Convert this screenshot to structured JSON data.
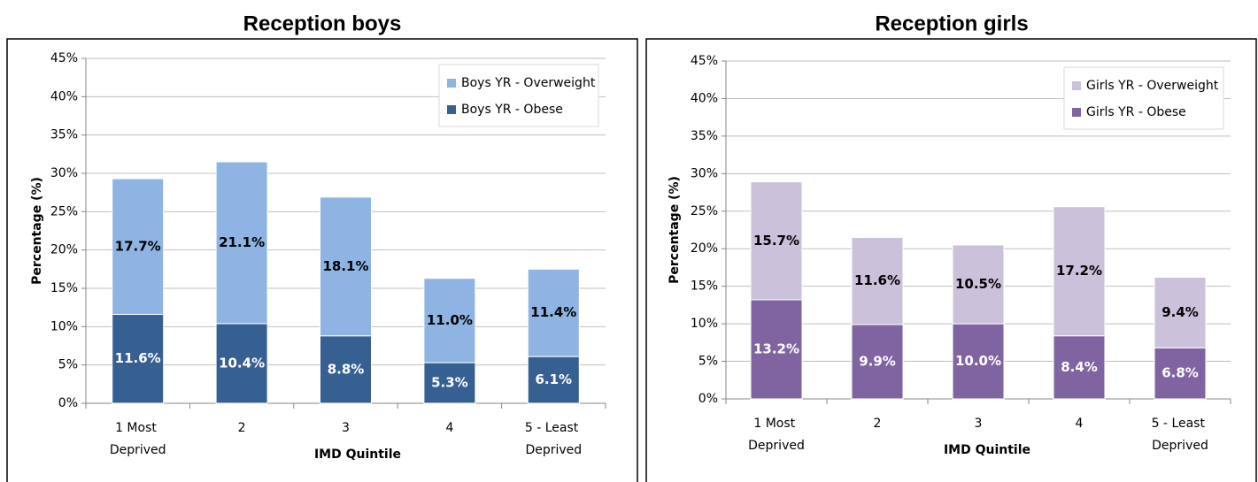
{
  "chart_data": [
    {
      "type": "stacked_bar",
      "title": "Reception boys",
      "x_label": "IMD Quintile",
      "y_label": "Percentage (%)",
      "categories": [
        "1 Most Deprived",
        "2",
        "3",
        "4",
        "5 - Least Deprived"
      ],
      "series": [
        {
          "name": "Boys YR - Overweight",
          "color": "#8eb4e3",
          "values": [
            17.7,
            21.1,
            18.1,
            11.0,
            11.4
          ],
          "value_labels": [
            "17.7%",
            "21.1%",
            "18.1%",
            "11.0%",
            "11.4%"
          ]
        },
        {
          "name": "Boys YR - Obese",
          "color": "#376092",
          "values": [
            11.6,
            10.4,
            8.8,
            5.3,
            6.1
          ],
          "value_labels": [
            "11.6%",
            "10.4%",
            "8.8%",
            "5.3%",
            "6.1%"
          ]
        }
      ],
      "ylim": [
        0,
        45
      ],
      "yticks": [
        {
          "value": 0,
          "label": "0%"
        },
        {
          "value": 5,
          "label": "5%"
        },
        {
          "value": 10,
          "label": "10%"
        },
        {
          "value": 15,
          "label": "15%"
        },
        {
          "value": 20,
          "label": "20%"
        },
        {
          "value": 25,
          "label": "25%"
        },
        {
          "value": 30,
          "label": "30%"
        },
        {
          "value": 35,
          "label": "35%"
        },
        {
          "value": 40,
          "label": "40%"
        },
        {
          "value": 45,
          "label": "45%"
        }
      ],
      "grid": true,
      "legend": "upper right"
    },
    {
      "type": "stacked_bar",
      "title": "Reception girls",
      "x_label": "IMD Quintile",
      "y_label": "Percentage (%)",
      "categories": [
        "1 Most Deprived",
        "2",
        "3",
        "4",
        "5 - Least Deprived"
      ],
      "series": [
        {
          "name": "Girls YR - Overweight",
          "color": "#ccc1da",
          "values": [
            15.7,
            11.6,
            10.5,
            17.2,
            9.4
          ],
          "value_labels": [
            "15.7%",
            "11.6%",
            "10.5%",
            "17.2%",
            "9.4%"
          ]
        },
        {
          "name": "Girls YR - Obese",
          "color": "#8064a2",
          "values": [
            13.2,
            9.9,
            10.0,
            8.4,
            6.8
          ],
          "value_labels": [
            "13.2%",
            "9.9%",
            "10.0%",
            "8.4%",
            "6.8%"
          ]
        }
      ],
      "ylim": [
        0,
        45
      ],
      "yticks": [
        {
          "value": 0,
          "label": "0%"
        },
        {
          "value": 5,
          "label": "5%"
        },
        {
          "value": 10,
          "label": "10%"
        },
        {
          "value": 15,
          "label": "15%"
        },
        {
          "value": 20,
          "label": "20%"
        },
        {
          "value": 25,
          "label": "25%"
        },
        {
          "value": 30,
          "label": "30%"
        },
        {
          "value": 35,
          "label": "35%"
        },
        {
          "value": 40,
          "label": "40%"
        },
        {
          "value": 45,
          "label": "45%"
        }
      ],
      "grid": true,
      "legend": "upper right"
    }
  ]
}
